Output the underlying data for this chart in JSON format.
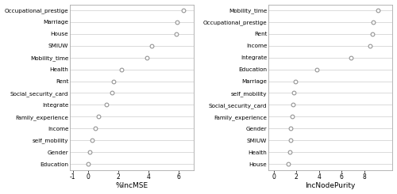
{
  "left_labels": [
    "Occupational_prestige",
    "Marriage",
    "House",
    "SMIUW",
    "Mobility_time",
    "Health",
    "Rent",
    "Social_security_card",
    "Integrate",
    "Family_experience",
    "Income",
    "self_mobility",
    "Gender",
    "Education"
  ],
  "left_values": [
    6.3,
    5.9,
    5.8,
    4.2,
    3.9,
    2.2,
    1.7,
    1.6,
    1.2,
    0.7,
    0.5,
    0.3,
    0.1,
    0.0
  ],
  "left_xlabel": "%IncMSE",
  "left_xlim": [
    -1.2,
    7.0
  ],
  "left_xticks": [
    -1,
    0,
    2,
    4,
    6
  ],
  "left_xticklabels": [
    "-1",
    "0",
    "2",
    "4",
    "6"
  ],
  "right_labels": [
    "Mobility_time",
    "Occupational_prestige",
    "Rent",
    "Income",
    "Integrate",
    "Education",
    "Marriage",
    "self_mobility",
    "Social_security_card",
    "Family_experience",
    "Gender",
    "SMIUW",
    "Health",
    "House"
  ],
  "right_values": [
    9.2,
    8.8,
    8.7,
    8.5,
    6.8,
    3.8,
    1.9,
    1.8,
    1.7,
    1.6,
    1.5,
    1.5,
    1.4,
    1.3
  ],
  "right_xlabel": "IncNodePurity",
  "right_xlim": [
    -0.5,
    10.5
  ],
  "right_xticks": [
    0,
    2,
    4,
    6,
    8
  ],
  "right_xticklabels": [
    "0",
    "2",
    "4",
    "6",
    "8"
  ],
  "dot_facecolor": "white",
  "dot_edgecolor": "#888888",
  "dot_size": 12,
  "dot_linewidth": 0.7,
  "bg_color": "white",
  "plot_bg": "white",
  "grid_color": "#cccccc",
  "label_fontsize": 5.2,
  "xlabel_fontsize": 6.5,
  "tick_fontsize": 5.5,
  "spine_color": "#aaaaaa",
  "spine_linewidth": 0.6
}
